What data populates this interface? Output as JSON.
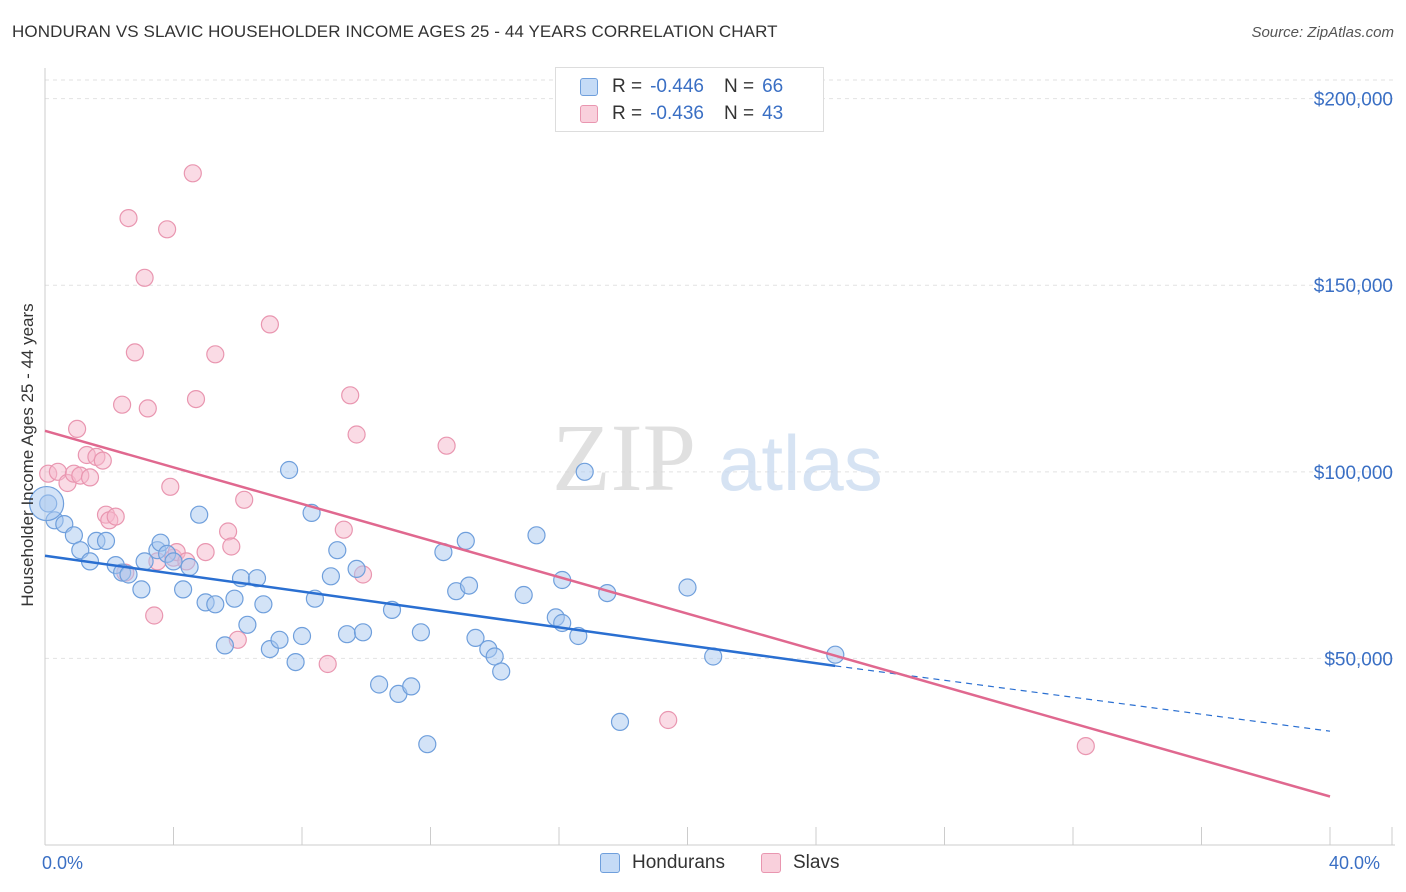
{
  "header": {
    "title": "HONDURAN VS SLAVIC HOUSEHOLDER INCOME AGES 25 - 44 YEARS CORRELATION CHART",
    "source": "Source: ZipAtlas.com"
  },
  "watermark": {
    "zip": "ZIP",
    "atlas": "atlas"
  },
  "legend": {
    "items": [
      {
        "r_label": "R =",
        "r_value": "-0.446",
        "n_label": "N =",
        "n_value": "66",
        "color": "#a8c8f0"
      },
      {
        "r_label": "R =",
        "r_value": "-0.436",
        "n_label": "N =",
        "n_value": "43",
        "color": "#f5b8cb"
      }
    ]
  },
  "bottom_legend": {
    "hondurans": "Hondurans",
    "slavs": "Slavs"
  },
  "colors": {
    "hondurans_fill": "#a8c8f0",
    "hondurans_stroke": "#6f9fdc",
    "hondurans_line": "#2a6fd1",
    "slavs_fill": "#f5b8cb",
    "slavs_stroke": "#e996b0",
    "slavs_line": "#e0688f",
    "axis_label": "#3a6fc4",
    "grid": "#e2e2e2"
  },
  "chart_data": {
    "type": "scatter",
    "title": "HONDURAN VS SLAVIC HOUSEHOLDER INCOME AGES 25 - 44 YEARS CORRELATION CHART",
    "xlabel": "",
    "ylabel": "Householder Income Ages 25 - 44 years",
    "xlim": [
      0,
      40
    ],
    "ylim": [
      0,
      205000
    ],
    "x_tick_labels": [
      "0.0%",
      "40.0%"
    ],
    "y_ticks": [
      50000,
      100000,
      150000,
      200000
    ],
    "y_tick_labels": [
      "$50,000",
      "$100,000",
      "$150,000",
      "$200,000"
    ],
    "grid": true,
    "series": [
      {
        "name": "Hondurans",
        "r": -0.446,
        "n": 66,
        "points": [
          [
            0.1,
            91500
          ],
          [
            0.3,
            87000
          ],
          [
            0.6,
            86000
          ],
          [
            0.9,
            83000
          ],
          [
            1.1,
            79000
          ],
          [
            1.4,
            76000
          ],
          [
            1.6,
            81500
          ],
          [
            1.9,
            81500
          ],
          [
            2.2,
            75000
          ],
          [
            2.4,
            73000
          ],
          [
            2.6,
            72500
          ],
          [
            3.0,
            68500
          ],
          [
            3.1,
            76000
          ],
          [
            3.5,
            79000
          ],
          [
            3.6,
            81000
          ],
          [
            3.8,
            78000
          ],
          [
            4.0,
            76000
          ],
          [
            4.3,
            68500
          ],
          [
            4.5,
            74500
          ],
          [
            4.8,
            88500
          ],
          [
            5.0,
            65000
          ],
          [
            5.3,
            64500
          ],
          [
            5.6,
            53500
          ],
          [
            5.9,
            66000
          ],
          [
            6.1,
            71500
          ],
          [
            6.3,
            59000
          ],
          [
            6.6,
            71500
          ],
          [
            6.8,
            64500
          ],
          [
            7.0,
            52500
          ],
          [
            7.3,
            55000
          ],
          [
            7.6,
            100500
          ],
          [
            7.8,
            49000
          ],
          [
            8.0,
            56000
          ],
          [
            8.3,
            89000
          ],
          [
            8.4,
            66000
          ],
          [
            8.9,
            72000
          ],
          [
            9.1,
            79000
          ],
          [
            9.4,
            56500
          ],
          [
            9.7,
            74000
          ],
          [
            9.9,
            57000
          ],
          [
            10.4,
            43000
          ],
          [
            10.8,
            63000
          ],
          [
            11.0,
            40500
          ],
          [
            11.4,
            42500
          ],
          [
            11.7,
            57000
          ],
          [
            11.9,
            27000
          ],
          [
            12.4,
            78500
          ],
          [
            12.8,
            68000
          ],
          [
            13.1,
            81500
          ],
          [
            13.2,
            69500
          ],
          [
            13.4,
            55500
          ],
          [
            13.8,
            52500
          ],
          [
            14.0,
            50500
          ],
          [
            14.2,
            46500
          ],
          [
            14.9,
            67000
          ],
          [
            15.3,
            83000
          ],
          [
            15.9,
            61000
          ],
          [
            16.1,
            71000
          ],
          [
            16.1,
            59500
          ],
          [
            16.6,
            56000
          ],
          [
            16.8,
            100000
          ],
          [
            17.5,
            67500
          ],
          [
            17.9,
            33000
          ],
          [
            20.0,
            69000
          ],
          [
            20.8,
            50500
          ],
          [
            24.6,
            51000
          ]
        ],
        "trend_solid": {
          "x": [
            0.0,
            24.6
          ],
          "y": [
            77500,
            48000
          ]
        },
        "trend_dashed": {
          "x": [
            24.6,
            40.0
          ],
          "y": [
            48000,
            30500
          ]
        }
      },
      {
        "name": "Slavs",
        "r": -0.436,
        "n": 43,
        "points": [
          [
            0.1,
            99500
          ],
          [
            0.4,
            100000
          ],
          [
            0.7,
            97000
          ],
          [
            0.9,
            99500
          ],
          [
            1.0,
            111500
          ],
          [
            1.1,
            99000
          ],
          [
            1.3,
            104500
          ],
          [
            1.4,
            98500
          ],
          [
            1.6,
            104000
          ],
          [
            1.8,
            103000
          ],
          [
            1.9,
            88500
          ],
          [
            2.0,
            87000
          ],
          [
            2.2,
            88000
          ],
          [
            2.4,
            118000
          ],
          [
            2.5,
            73000
          ],
          [
            2.6,
            168000
          ],
          [
            2.8,
            132000
          ],
          [
            3.1,
            152000
          ],
          [
            3.2,
            117000
          ],
          [
            3.4,
            61500
          ],
          [
            3.5,
            76000
          ],
          [
            3.8,
            165000
          ],
          [
            3.9,
            96000
          ],
          [
            4.0,
            77000
          ],
          [
            4.1,
            78500
          ],
          [
            4.4,
            76000
          ],
          [
            4.6,
            180000
          ],
          [
            4.7,
            119500
          ],
          [
            5.0,
            78500
          ],
          [
            5.3,
            131500
          ],
          [
            5.7,
            84000
          ],
          [
            5.8,
            80000
          ],
          [
            6.0,
            55000
          ],
          [
            6.2,
            92500
          ],
          [
            7.0,
            139500
          ],
          [
            8.8,
            48500
          ],
          [
            9.3,
            84500
          ],
          [
            9.5,
            120500
          ],
          [
            9.7,
            110000
          ],
          [
            9.9,
            72500
          ],
          [
            12.5,
            107000
          ],
          [
            19.4,
            33500
          ],
          [
            32.4,
            26500
          ]
        ],
        "trend_solid": {
          "x": [
            0.0,
            40.0
          ],
          "y": [
            111000,
            13000
          ]
        }
      }
    ]
  }
}
